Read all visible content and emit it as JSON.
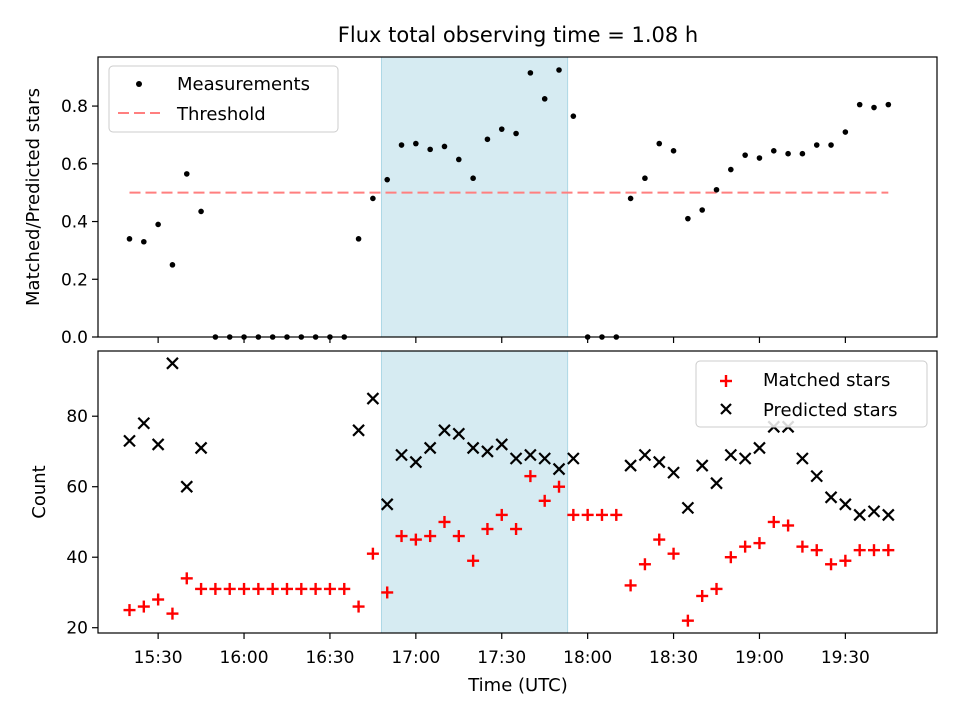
{
  "title": "Flux total observing time = 1.08 h",
  "chart_data": [
    {
      "type": "scatter",
      "ylabel": "Matched/Predicted stars",
      "ylim": [
        0,
        0.97
      ],
      "yticks": [
        0.0,
        0.2,
        0.4,
        0.6,
        0.8
      ],
      "ytick_labels": [
        "0.0",
        "0.2",
        "0.4",
        "0.6",
        "0.8"
      ],
      "grid": false,
      "legend_position": "upper-left",
      "legend": [
        {
          "label": "Measurements",
          "marker": "dot",
          "color": "#000000"
        },
        {
          "label": "Threshold",
          "marker": "dashed-line",
          "color": "#ff7f7f"
        }
      ],
      "shaded_span": {
        "from": "16:48",
        "to": "17:53",
        "color": "#add8e6"
      },
      "threshold": {
        "value": 0.5,
        "from": "15:20",
        "to": "19:45",
        "color": "#ff7f7f"
      },
      "series": [
        {
          "name": "Measurements",
          "x": [
            "15:20",
            "15:25",
            "15:30",
            "15:35",
            "15:40",
            "15:45",
            "15:50",
            "15:55",
            "16:00",
            "16:05",
            "16:10",
            "16:15",
            "16:20",
            "16:25",
            "16:30",
            "16:35",
            "16:40",
            "16:45",
            "16:50",
            "16:55",
            "17:00",
            "17:05",
            "17:10",
            "17:15",
            "17:20",
            "17:25",
            "17:30",
            "17:35",
            "17:40",
            "17:45",
            "17:50",
            "17:55",
            "18:00",
            "18:05",
            "18:10",
            "18:15",
            "18:20",
            "18:25",
            "18:30",
            "18:35",
            "18:40",
            "18:45",
            "18:50",
            "18:55",
            "19:00",
            "19:05",
            "19:10",
            "19:15",
            "19:20",
            "19:25",
            "19:30",
            "19:35",
            "19:40",
            "19:45"
          ],
          "y": [
            0.34,
            0.33,
            0.39,
            0.25,
            0.565,
            0.435,
            0.0,
            0.0,
            0.0,
            0.0,
            0.0,
            0.0,
            0.0,
            0.0,
            0.0,
            0.0,
            0.34,
            0.48,
            0.545,
            0.665,
            0.67,
            0.65,
            0.66,
            0.615,
            0.55,
            0.685,
            0.72,
            0.705,
            0.915,
            0.825,
            0.925,
            0.765,
            0.0,
            0.0,
            0.0,
            0.48,
            0.55,
            0.67,
            0.645,
            0.41,
            0.44,
            0.51,
            0.58,
            0.63,
            0.62,
            0.645,
            0.635,
            0.635,
            0.665,
            0.665,
            0.71,
            0.805,
            0.795,
            0.805
          ]
        }
      ]
    },
    {
      "type": "scatter",
      "xlabel": "Time (UTC)",
      "ylabel": "Count",
      "ylim": [
        18.5,
        98.5
      ],
      "yticks": [
        20,
        40,
        60,
        80
      ],
      "ytick_labels": [
        "20",
        "40",
        "60",
        "80"
      ],
      "xtick_values": [
        "15:30",
        "16:00",
        "16:30",
        "17:00",
        "17:30",
        "18:00",
        "18:30",
        "19:00",
        "19:30"
      ],
      "xtick_labels": [
        "15:30",
        "16:00",
        "16:30",
        "17:00",
        "17:30",
        "18:00",
        "18:30",
        "19:00",
        "19:30"
      ],
      "xlim": [
        "15:09",
        "20:02"
      ],
      "grid": false,
      "legend_position": "upper-right",
      "legend": [
        {
          "label": "Matched stars",
          "marker": "plus",
          "color": "#ff0000"
        },
        {
          "label": "Predicted stars",
          "marker": "x",
          "color": "#000000"
        }
      ],
      "shaded_span": {
        "from": "16:48",
        "to": "17:53",
        "color": "#add8e6"
      },
      "series": [
        {
          "name": "Matched stars",
          "x": [
            "15:20",
            "15:25",
            "15:30",
            "15:35",
            "15:40",
            "15:45",
            "15:50",
            "15:55",
            "16:00",
            "16:05",
            "16:10",
            "16:15",
            "16:20",
            "16:25",
            "16:30",
            "16:35",
            "16:40",
            "16:45",
            "16:50",
            "16:55",
            "17:00",
            "17:05",
            "17:10",
            "17:15",
            "17:20",
            "17:25",
            "17:30",
            "17:35",
            "17:40",
            "17:45",
            "17:50",
            "17:55",
            "18:00",
            "18:05",
            "18:10",
            "18:15",
            "18:20",
            "18:25",
            "18:30",
            "18:35",
            "18:40",
            "18:45",
            "18:50",
            "18:55",
            "19:00",
            "19:05",
            "19:10",
            "19:15",
            "19:20",
            "19:25",
            "19:30",
            "19:35",
            "19:40",
            "19:45"
          ],
          "y": [
            25,
            26,
            28,
            24,
            34,
            31,
            31,
            31,
            31,
            31,
            31,
            31,
            31,
            31,
            31,
            31,
            26,
            41,
            30,
            46,
            45,
            46,
            50,
            46,
            39,
            48,
            52,
            48,
            63,
            56,
            60,
            52,
            52,
            52,
            52,
            32,
            38,
            45,
            41,
            22,
            29,
            31,
            40,
            43,
            44,
            50,
            49,
            43,
            42,
            38,
            39,
            42,
            42,
            42
          ]
        },
        {
          "name": "Predicted stars",
          "x": [
            "15:20",
            "15:25",
            "15:30",
            "15:35",
            "15:40",
            "15:45",
            "16:40",
            "16:45",
            "16:50",
            "16:55",
            "17:00",
            "17:05",
            "17:10",
            "17:15",
            "17:20",
            "17:25",
            "17:30",
            "17:35",
            "17:40",
            "17:45",
            "17:50",
            "17:55",
            "18:15",
            "18:20",
            "18:25",
            "18:30",
            "18:35",
            "18:40",
            "18:45",
            "18:50",
            "18:55",
            "19:00",
            "19:05",
            "19:10",
            "19:15",
            "19:20",
            "19:25",
            "19:30",
            "19:35",
            "19:40",
            "19:45"
          ],
          "y": [
            73,
            78,
            72,
            95,
            60,
            71,
            76,
            85,
            55,
            69,
            67,
            71,
            76,
            75,
            71,
            70,
            72,
            68,
            69,
            68,
            65,
            68,
            66,
            69,
            67,
            64,
            54,
            66,
            61,
            69,
            68,
            71,
            77,
            77,
            68,
            63,
            57,
            55,
            52,
            53,
            52
          ]
        }
      ]
    }
  ]
}
